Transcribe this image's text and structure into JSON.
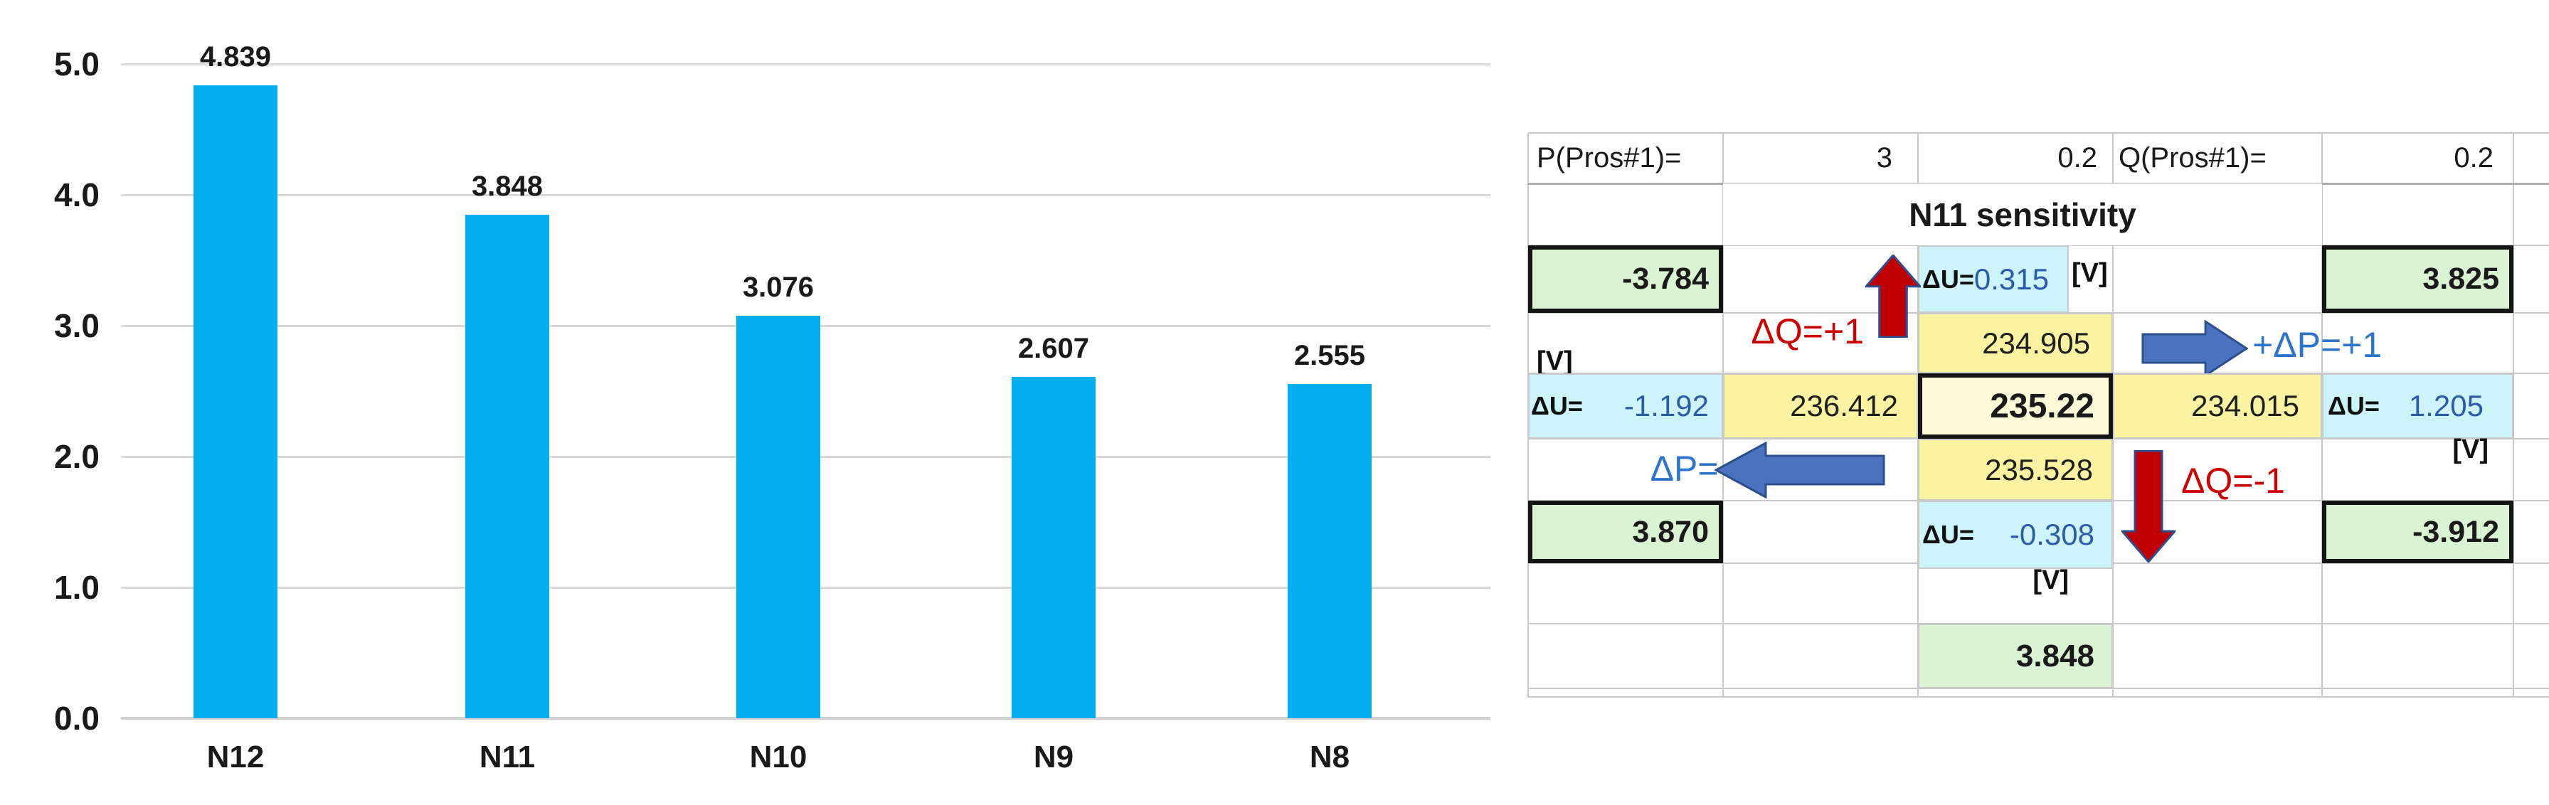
{
  "chart_data": [
    {
      "type": "bar",
      "categories": [
        "N12",
        "N11",
        "N10",
        "N9",
        "N8"
      ],
      "values": [
        4.839,
        3.848,
        3.076,
        2.607,
        2.555
      ],
      "data_labels": [
        "4.839",
        "3.848",
        "3.076",
        "2.607",
        "2.555"
      ],
      "ytick_labels": [
        "0.0",
        "1.0",
        "2.0",
        "3.0",
        "4.0",
        "5.0"
      ],
      "yticks": [
        0,
        1,
        2,
        3,
        4,
        5
      ],
      "ylim": [
        0,
        5
      ],
      "grid": true,
      "legend": false,
      "title": "",
      "xlabel": "",
      "ylabel": "",
      "bar_color": "#05AEEF"
    },
    {
      "type": "table",
      "title": "N11 sensitivity",
      "header_row": [
        "P(Pros#1)=",
        "3",
        "0.2",
        "Q(Pros#1)=",
        "0.2"
      ],
      "center_voltage": "235.22",
      "neighbor_voltages": {
        "up": "234.905",
        "left": "236.412",
        "right": "234.015",
        "down": "235.528"
      },
      "delta_u": {
        "up": "0.315",
        "left": "-1.192",
        "right": "1.205",
        "down": "-0.308",
        "unit": "[V]"
      },
      "sensitivities": {
        "q_plus": "-3.784",
        "p_plus": "3.825",
        "p_minus": "3.870",
        "q_minus": "-3.912"
      },
      "base_value": "3.848",
      "annotations": {
        "dq_plus": "ΔQ=+1",
        "dp_plus": "+ΔP=+1",
        "dp_minus": "ΔP=-1",
        "dq_minus": "ΔQ=-1"
      }
    }
  ],
  "sheet": {
    "p_label": "P(Pros#1)=",
    "p_value": "3",
    "p_aux": "0.2",
    "q_label": "Q(Pros#1)=",
    "q_value": "0.2",
    "title": "N11 sensitivity",
    "sens_up_left": "-3.784",
    "sens_up_right": "3.825",
    "sens_down_left": "3.870",
    "sens_down_right": "-3.912",
    "du": "ΔU=",
    "du_up": "0.315",
    "du_left": "-1.192",
    "du_right": "1.205",
    "du_down": "-0.308",
    "v_unit": "[V]",
    "v_up": "234.905",
    "v_left": "236.412",
    "v_center": "235.22",
    "v_right": "234.015",
    "v_down": "235.528",
    "dq_plus": "ΔQ=+1",
    "dq_minus": "ΔQ=-1",
    "dp_plus": "+ΔP=+1",
    "dp_minus": "ΔP=-1",
    "base": "3.848"
  },
  "colors": {
    "bar": "#05AEEF",
    "grid": "#C9C9C9",
    "grid_chart": "#D9D9D9",
    "cyan": "#CDF4FA",
    "yellow": "#FAF3A2",
    "yellow_center": "#FFFBD8",
    "green": "#D9F3D3",
    "red_arrow": "#C00000",
    "blue_arrow": "#4A72BE",
    "red_text": "#CC0000",
    "blue_text": "#2E74C8",
    "num_blue": "#2A5CA8"
  }
}
